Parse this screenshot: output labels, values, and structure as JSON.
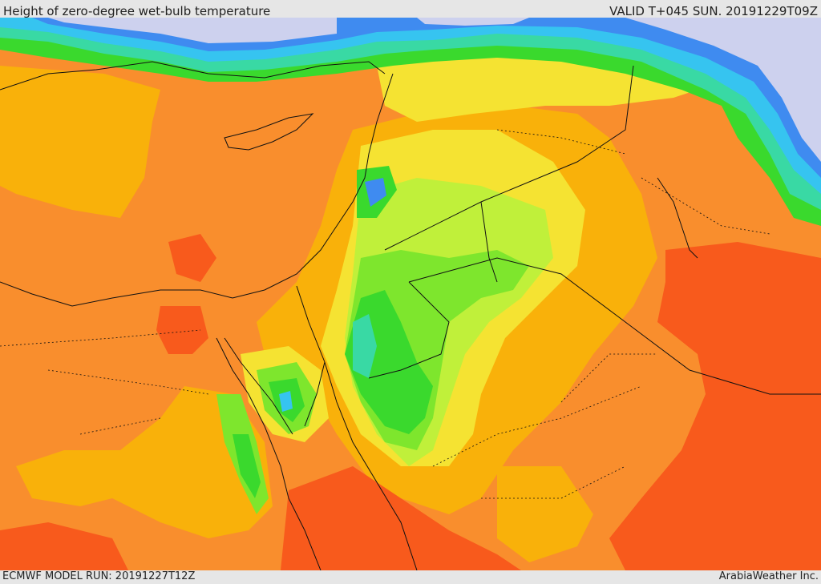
{
  "header": {
    "title": "Height of zero-degree wet-bulb temperature",
    "valid": "VALID T+045 SUN. 20191229T09Z"
  },
  "footer": {
    "model_run": "ECMWF MODEL RUN: 20191227T12Z",
    "credit": "ArabiaWeather Inc."
  },
  "colors": {
    "base_orange": "#f98e2d",
    "amber": "#f9b10a",
    "yellow": "#f5e332",
    "lime": "#c0f03a",
    "green": "#7ee62d",
    "bright_green": "#3ad92d",
    "teal": "#39d9a4",
    "cyan": "#36c4f0",
    "blue": "#3f8bf0",
    "deep_blue": "#3a5ae8",
    "lavender": "#cdd1ee",
    "red_orange": "#f85a1c",
    "red": "#f6481a"
  }
}
